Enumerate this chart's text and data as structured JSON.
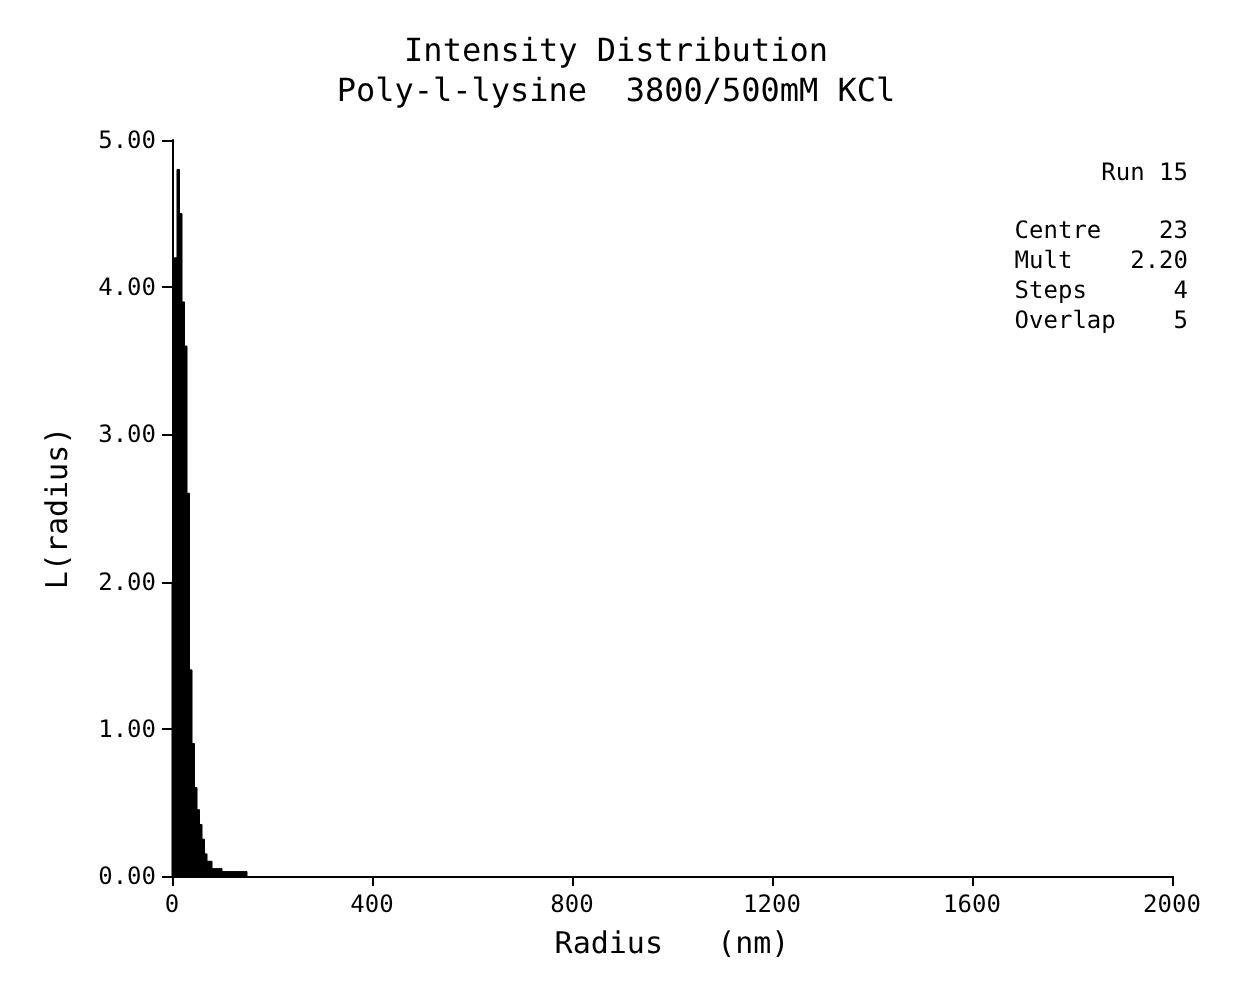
{
  "chart_data": {
    "type": "histogram",
    "title": "Intensity Distribution",
    "subtitle": "Poly-l-lysine  3800/500mM KCl",
    "xlabel": "Radius   (nm)",
    "ylabel": "L(radius)",
    "annotations": [
      "Run 15",
      "Centre    23",
      "Mult    2.20",
      "Steps      4",
      "Overlap    5"
    ],
    "bins": [
      0,
      5,
      10,
      15,
      20,
      25,
      30,
      35,
      40,
      45,
      50,
      55,
      60,
      65,
      70,
      80,
      100,
      150
    ],
    "values": [
      2.0,
      4.2,
      4.8,
      4.5,
      3.9,
      3.6,
      2.6,
      1.4,
      0.9,
      0.6,
      0.45,
      0.35,
      0.25,
      0.15,
      0.1,
      0.05,
      0.03
    ],
    "color": "#000000",
    "xlim": [
      0,
      2000
    ],
    "xticks": [
      0,
      400,
      800,
      1200,
      1600,
      2000
    ],
    "ylim": [
      0,
      5
    ],
    "yticks": [
      {
        "value": 0,
        "label": "0.00"
      },
      {
        "value": 1,
        "label": "1.00"
      },
      {
        "value": 2,
        "label": "2.00"
      },
      {
        "value": 3,
        "label": "3.00"
      },
      {
        "value": 4,
        "label": "4.00"
      },
      {
        "value": 5,
        "label": "5.00"
      }
    ],
    "grid": false
  }
}
